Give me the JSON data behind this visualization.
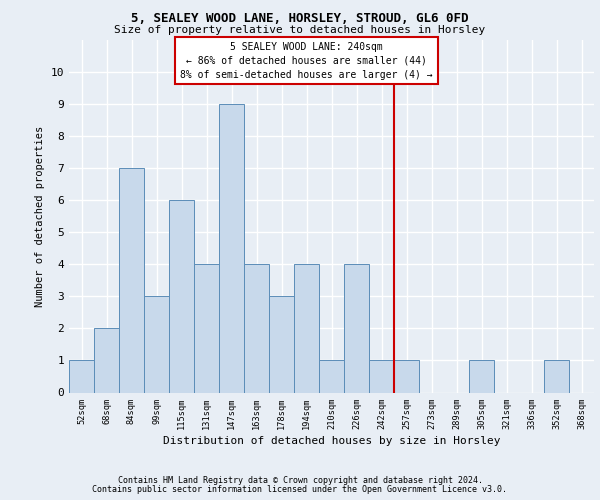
{
  "title": "5, SEALEY WOOD LANE, HORSLEY, STROUD, GL6 0FD",
  "subtitle": "Size of property relative to detached houses in Horsley",
  "xlabel": "Distribution of detached houses by size in Horsley",
  "ylabel": "Number of detached properties",
  "bar_labels": [
    "52sqm",
    "68sqm",
    "84sqm",
    "99sqm",
    "115sqm",
    "131sqm",
    "147sqm",
    "163sqm",
    "178sqm",
    "194sqm",
    "210sqm",
    "226sqm",
    "242sqm",
    "257sqm",
    "273sqm",
    "289sqm",
    "305sqm",
    "321sqm",
    "336sqm",
    "352sqm",
    "368sqm"
  ],
  "bar_values": [
    1,
    2,
    7,
    3,
    6,
    4,
    9,
    4,
    3,
    4,
    1,
    4,
    1,
    1,
    0,
    0,
    1,
    0,
    0,
    1,
    0
  ],
  "bar_color": "#c8d9eb",
  "bar_edge_color": "#5b8db8",
  "vline_x": 12.5,
  "vline_color": "#cc0000",
  "annotation_text": "5 SEALEY WOOD LANE: 240sqm\n← 86% of detached houses are smaller (44)\n8% of semi-detached houses are larger (4) →",
  "annotation_box_edgecolor": "#cc0000",
  "ylim": [
    0,
    11
  ],
  "yticks": [
    0,
    1,
    2,
    3,
    4,
    5,
    6,
    7,
    8,
    9,
    10
  ],
  "footer_line1": "Contains HM Land Registry data © Crown copyright and database right 2024.",
  "footer_line2": "Contains public sector information licensed under the Open Government Licence v3.0.",
  "bg_color": "#e8eef5"
}
